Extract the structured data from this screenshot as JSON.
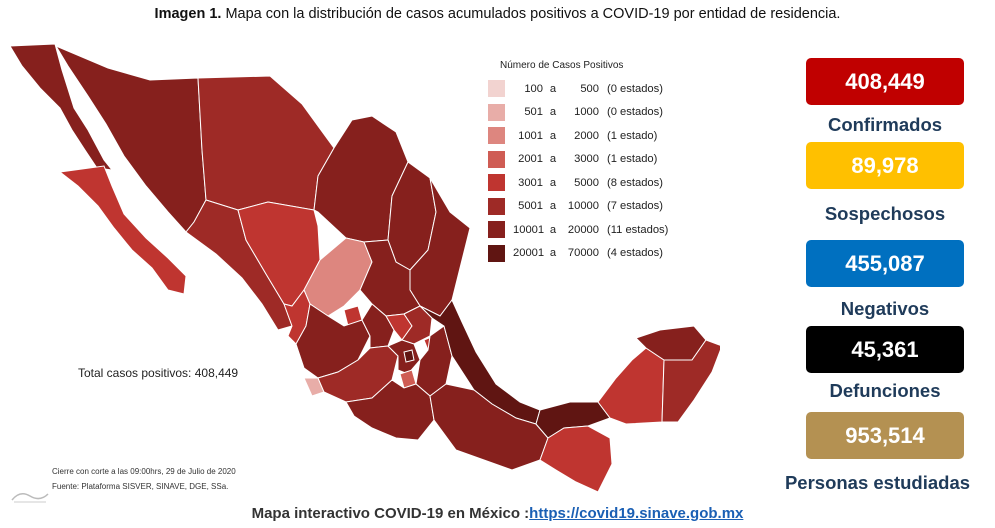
{
  "title": {
    "prefix": "Imagen 1.",
    "text": "Mapa con la distribución de casos acumulados positivos a COVID-19 por entidad de residencia."
  },
  "legend": {
    "title": "Número de Casos Positivos",
    "rows": [
      {
        "min": "100",
        "sep": "a",
        "max": "500",
        "count": "(0 estados)",
        "color": "#f2d3d0"
      },
      {
        "min": "501",
        "sep": "a",
        "max": "1000",
        "count": "(0 estados)",
        "color": "#e8ada8"
      },
      {
        "min": "1001",
        "sep": "a",
        "max": "2000",
        "count": "(1 estado)",
        "color": "#dd867f"
      },
      {
        "min": "2001",
        "sep": "a",
        "max": "3000",
        "count": "(1 estado)",
        "color": "#cf5c54"
      },
      {
        "min": "3001",
        "sep": "a",
        "max": "5000",
        "count": "(8 estados)",
        "color": "#bf3530"
      },
      {
        "min": "5001",
        "sep": "a",
        "max": "10000",
        "count": "(7 estados)",
        "color": "#9e2a26"
      },
      {
        "min": "10001",
        "sep": "a",
        "max": "20000",
        "count": "(11 estados)",
        "color": "#86201d"
      },
      {
        "min": "20001",
        "sep": "a",
        "max": "70000",
        "count": "(4 estados)",
        "color": "#601512"
      }
    ]
  },
  "total_label": "Total casos positivos: 408,449",
  "notes": {
    "cutoff": "Cierre con corte a las 09:00hrs, 29 de Julio de 2020",
    "source": "Fuente: Plataforma SISVER, SINAVE, DGE, SSa."
  },
  "stats": [
    {
      "value": "408,449",
      "label": "Confirmados",
      "color": "#c00000"
    },
    {
      "value": "89,978",
      "label": "Sospechosos",
      "color": "#ffc000"
    },
    {
      "value": "455,087",
      "label": "Negativos",
      "color": "#0070c0"
    },
    {
      "value": "45,361",
      "label": "Defunciones",
      "color": "#000000"
    },
    {
      "value": "953,514",
      "label": "Personas estudiadas",
      "color": "#b49152"
    }
  ],
  "footer": {
    "text": "Mapa interactivo COVID-19 en México :",
    "link": "https://covid19.sinave.gob.mx"
  }
}
